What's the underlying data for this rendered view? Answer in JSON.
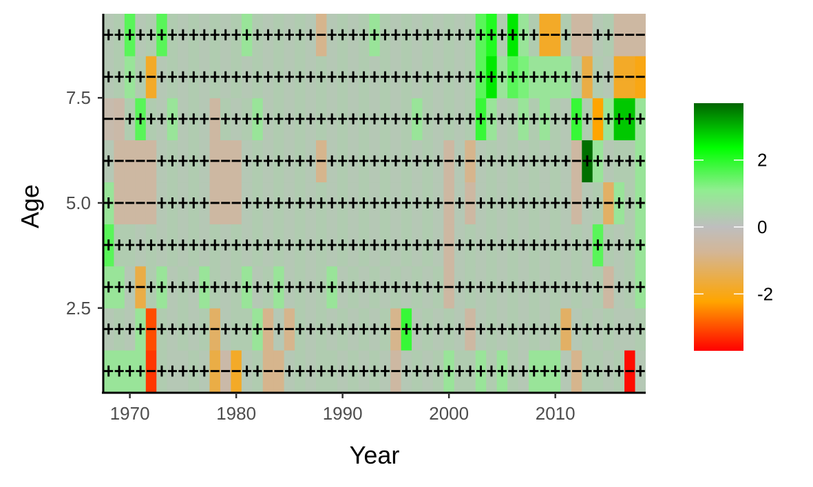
{
  "chart_data": {
    "type": "heatmap",
    "xlabel": "Year",
    "ylabel": "Age",
    "x_ticks": [
      1970,
      1980,
      1990,
      2000,
      2010
    ],
    "y_ticks": [
      2.5,
      5.0,
      7.5
    ],
    "y_tick_labels": [
      "2.5",
      "5.0",
      "7.5"
    ],
    "xlim": [
      1967.5,
      2018.5
    ],
    "ylim": [
      0.5,
      9.5
    ],
    "years": [
      1968,
      1969,
      1970,
      1971,
      1972,
      1973,
      1974,
      1975,
      1976,
      1977,
      1978,
      1979,
      1980,
      1981,
      1982,
      1983,
      1984,
      1985,
      1986,
      1987,
      1988,
      1989,
      1990,
      1991,
      1992,
      1993,
      1994,
      1995,
      1996,
      1997,
      1998,
      1999,
      2000,
      2001,
      2002,
      2003,
      2004,
      2005,
      2006,
      2007,
      2008,
      2009,
      2010,
      2011,
      2012,
      2013,
      2014,
      2015,
      2016,
      2017,
      2018
    ],
    "ages": [
      1,
      2,
      3,
      4,
      5,
      6,
      7,
      8,
      9
    ],
    "values": [
      [
        0.8,
        0.8,
        0.8,
        0.8,
        -3.2,
        0.3,
        0.2,
        0.2,
        0.3,
        0.2,
        -1.5,
        -0.4,
        -1.8,
        0.2,
        0.3,
        -0.8,
        -0.8,
        0.2,
        0.3,
        0.2,
        0.3,
        0.3,
        0.2,
        0.3,
        0.2,
        0.3,
        0.2,
        -0.5,
        0.2,
        0.3,
        0.2,
        0.3,
        0.8,
        0.3,
        0.3,
        0.8,
        0.3,
        0.8,
        0.3,
        0.2,
        0.8,
        0.8,
        0.8,
        0.2,
        -0.8,
        0.3,
        0.3,
        0.2,
        0.3,
        -3.6,
        0.2
      ],
      [
        0.2,
        0.3,
        0.2,
        0.8,
        -3.0,
        0.3,
        0.2,
        0.3,
        0.2,
        0.3,
        -1.2,
        0.2,
        0.3,
        0.3,
        0.8,
        -0.8,
        0.2,
        -0.8,
        0.3,
        0.2,
        0.3,
        0.2,
        0.3,
        0.2,
        0.3,
        0.2,
        0.3,
        -0.8,
        1.8,
        0.2,
        0.3,
        0.2,
        0.3,
        0.2,
        -0.5,
        0.2,
        0.3,
        0.2,
        0.3,
        0.2,
        0.3,
        0.2,
        0.3,
        -1.2,
        0.2,
        0.3,
        0.2,
        0.3,
        0.2,
        0.2,
        0.3
      ],
      [
        0.8,
        0.8,
        0.2,
        -1.5,
        0.3,
        0.8,
        0.2,
        0.3,
        0.2,
        0.8,
        0.3,
        0.2,
        0.3,
        0.8,
        0.2,
        0.3,
        0.8,
        0.2,
        0.3,
        0.2,
        0.3,
        0.8,
        0.2,
        0.3,
        0.2,
        0.3,
        0.2,
        0.3,
        0.2,
        0.3,
        0.2,
        0.3,
        -0.5,
        0.2,
        0.3,
        0.2,
        0.3,
        0.2,
        0.3,
        0.2,
        0.3,
        0.2,
        0.3,
        0.2,
        0.3,
        0.2,
        0.3,
        -0.5,
        0.2,
        0.3,
        0.8
      ],
      [
        1.5,
        0.3,
        0.3,
        0.2,
        0.3,
        0.2,
        0.3,
        0.2,
        0.3,
        0.2,
        0.3,
        0.2,
        0.3,
        0.2,
        0.3,
        0.2,
        0.3,
        0.2,
        0.3,
        0.2,
        0.3,
        0.2,
        0.3,
        0.2,
        0.3,
        0.2,
        0.3,
        0.2,
        0.3,
        0.2,
        0.3,
        0.2,
        -0.5,
        0.2,
        0.3,
        0.2,
        0.3,
        0.2,
        0.3,
        0.2,
        0.3,
        0.2,
        0.3,
        0.2,
        0.3,
        0.2,
        1.5,
        0.3,
        0.2,
        0.3,
        0.8
      ],
      [
        0.8,
        -0.5,
        -0.5,
        -0.5,
        -0.5,
        0.2,
        0.3,
        0.2,
        0.3,
        0.2,
        -0.5,
        -0.5,
        -0.5,
        0.2,
        0.3,
        0.2,
        0.3,
        0.2,
        0.3,
        0.2,
        0.3,
        0.2,
        0.3,
        0.2,
        0.3,
        0.2,
        0.3,
        0.2,
        0.3,
        0.2,
        0.3,
        0.2,
        -0.5,
        0.2,
        -0.5,
        0.2,
        0.3,
        0.2,
        0.3,
        0.2,
        0.3,
        0.2,
        0.3,
        0.2,
        -0.5,
        0.2,
        0.3,
        -1.2,
        0.8,
        0.3,
        0.8
      ],
      [
        0.2,
        -0.5,
        -0.5,
        -0.5,
        -0.5,
        0.2,
        0.3,
        0.2,
        0.3,
        0.2,
        -0.5,
        -0.5,
        -0.5,
        0.2,
        0.3,
        0.2,
        0.3,
        0.2,
        0.3,
        0.2,
        -0.8,
        0.2,
        0.3,
        0.2,
        0.3,
        0.2,
        0.3,
        0.2,
        0.3,
        0.2,
        0.3,
        0.2,
        -0.5,
        0.2,
        -0.8,
        0.2,
        0.3,
        0.2,
        0.3,
        0.2,
        0.3,
        0.2,
        0.3,
        0.2,
        -0.5,
        3.6,
        0.8,
        0.2,
        0.3,
        0.3,
        0.8
      ],
      [
        -0.3,
        -0.4,
        0.3,
        1.5,
        0.3,
        0.2,
        0.8,
        0.2,
        0.3,
        0.2,
        -0.5,
        0.3,
        0.2,
        0.3,
        0.8,
        0.2,
        0.3,
        0.2,
        0.3,
        0.2,
        0.3,
        0.2,
        0.3,
        0.2,
        0.3,
        0.2,
        0.3,
        0.2,
        0.3,
        0.8,
        0.3,
        0.2,
        0.3,
        0.2,
        0.3,
        1.8,
        0.8,
        0.2,
        0.3,
        0.8,
        0.3,
        0.8,
        0.3,
        0.2,
        1.8,
        0.3,
        -2.2,
        0.8,
        2.8,
        2.8,
        0.8
      ],
      [
        0.2,
        0.3,
        0.8,
        0.3,
        -1.8,
        0.2,
        0.3,
        0.2,
        0.3,
        0.2,
        0.3,
        0.2,
        0.3,
        0.2,
        0.3,
        0.2,
        0.3,
        0.2,
        0.3,
        0.2,
        0.3,
        0.2,
        0.3,
        0.2,
        0.3,
        0.2,
        0.3,
        0.2,
        0.3,
        0.2,
        0.3,
        0.2,
        0.3,
        0.2,
        0.3,
        1.5,
        2.5,
        0.8,
        1.5,
        1.2,
        0.8,
        0.8,
        0.8,
        0.8,
        0.3,
        -1.5,
        0.3,
        0.2,
        -1.8,
        -1.8,
        -2.0
      ],
      [
        0.2,
        0.3,
        1.5,
        0.2,
        0.3,
        1.5,
        0.3,
        0.2,
        0.3,
        0.2,
        0.3,
        0.2,
        0.3,
        0.8,
        0.3,
        0.2,
        0.3,
        0.2,
        0.3,
        0.2,
        -0.8,
        0.2,
        0.3,
        0.2,
        0.3,
        0.8,
        0.3,
        0.2,
        0.3,
        0.2,
        0.3,
        0.2,
        0.3,
        0.2,
        0.3,
        1.5,
        2.0,
        0.3,
        2.5,
        0.8,
        0.3,
        -1.8,
        -1.8,
        0.3,
        -0.5,
        -0.5,
        0.2,
        0.3,
        -0.5,
        -0.5,
        -0.5
      ]
    ],
    "legend": {
      "ticks": [
        2,
        0,
        -2
      ],
      "tick_labels": [
        "2",
        "0",
        "-2"
      ],
      "range": [
        -3.7,
        3.7
      ],
      "colors": [
        "#ff0000",
        "#ffa500",
        "#d3b697",
        "#bebebe",
        "#90ee90",
        "#00ff00",
        "#006400"
      ]
    },
    "grid": false,
    "legend_position": "right"
  }
}
